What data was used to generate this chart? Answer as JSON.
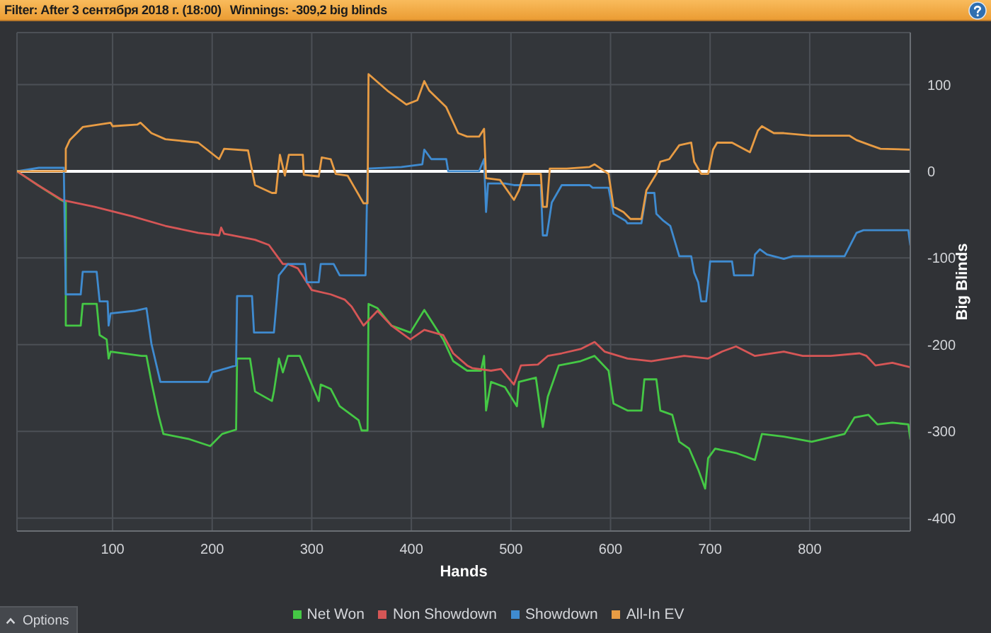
{
  "chart_data": {
    "type": "line",
    "title": "Filter: After 3 сентября 2018 г. (18:00)",
    "subtitle": "Winnings: -309,2 big blinds",
    "xlabel": "Hands",
    "ylabel": "Big Blinds",
    "xlim": [
      4,
      901
    ],
    "xticks": [
      100,
      200,
      300,
      400,
      500,
      600,
      700,
      800
    ],
    "ylim": [
      -415,
      160
    ],
    "yticks": [
      -400,
      -300,
      -200,
      -100,
      0,
      100
    ],
    "grid": true,
    "legend": "bottom",
    "marker": "none",
    "ref_lines": [
      {
        "axis": "y",
        "value": 0,
        "color": "#ffffff"
      }
    ],
    "annotations": [
      "Options"
    ],
    "series": [
      {
        "name": "Net Won",
        "color": "#45c845",
        "x": [
          4,
          25,
          48,
          53,
          53,
          68,
          70,
          84,
          87,
          94,
          96,
          98,
          129,
          134,
          139,
          146,
          151,
          177,
          198,
          210,
          224,
          225,
          238,
          243,
          260,
          262,
          267,
          271,
          276,
          288,
          300,
          307,
          309,
          319,
          328,
          347,
          350,
          356,
          357,
          366,
          380,
          399,
          413,
          432,
          442,
          456,
          470,
          473,
          475,
          480,
          494,
          506,
          508,
          525,
          532,
          537,
          548,
          570,
          584,
          598,
          603,
          617,
          631,
          634,
          646,
          650,
          662,
          669,
          679,
          688,
          695,
          698,
          705,
          726,
          745,
          752,
          774,
          802,
          835,
          845,
          859,
          868,
          883,
          899,
          901
        ],
        "values": [
          0,
          -16,
          -33,
          -36,
          -178,
          -178,
          -153,
          -153,
          -189,
          -194,
          -216,
          -208,
          -213,
          -213,
          -243,
          -281,
          -303,
          -309,
          -317,
          -303,
          -298,
          -216,
          -216,
          -254,
          -265,
          -254,
          -216,
          -232,
          -213,
          -213,
          -246,
          -265,
          -246,
          -251,
          -271,
          -287,
          -299,
          -299,
          -153,
          -158,
          -178,
          -186,
          -160,
          -194,
          -219,
          -230,
          -230,
          -213,
          -276,
          -243,
          -249,
          -271,
          -243,
          -238,
          -295,
          -260,
          -224,
          -219,
          -213,
          -230,
          -268,
          -276,
          -276,
          -240,
          -240,
          -276,
          -281,
          -312,
          -320,
          -344,
          -366,
          -331,
          -320,
          -325,
          -333,
          -303,
          -306,
          -312,
          -303,
          -284,
          -281,
          -292,
          -290,
          -292,
          -309
        ]
      },
      {
        "name": "Non Showdown",
        "color": "#d65656",
        "x": [
          4,
          25,
          49,
          82,
          120,
          153,
          186,
          207,
          209,
          212,
          243,
          257,
          271,
          276,
          286,
          300,
          319,
          333,
          340,
          352,
          366,
          380,
          399,
          413,
          432,
          442,
          456,
          461,
          480,
          490,
          503,
          510,
          527,
          537,
          551,
          570,
          584,
          594,
          617,
          641,
          674,
          698,
          712,
          726,
          745,
          774,
          793,
          821,
          850,
          857,
          866,
          883,
          901
        ],
        "values": [
          0,
          -16,
          -33,
          -41,
          -52,
          -63,
          -71,
          -74,
          -65,
          -72,
          -79,
          -85,
          -107,
          -107,
          -112,
          -137,
          -142,
          -148,
          -156,
          -178,
          -161,
          -178,
          -194,
          -183,
          -189,
          -210,
          -224,
          -227,
          -230,
          -228,
          -246,
          -224,
          -223,
          -213,
          -210,
          -205,
          -197,
          -208,
          -216,
          -219,
          -213,
          -216,
          -208,
          -202,
          -213,
          -208,
          -213,
          -213,
          -210,
          -213,
          -224,
          -221,
          -226
        ]
      },
      {
        "name": "Showdown",
        "color": "#3f8bd0",
        "x": [
          4,
          26,
          51,
          53,
          68,
          70,
          84,
          87,
          95,
          96,
          98,
          122,
          134,
          139,
          148,
          196,
          200,
          215,
          224,
          225,
          240,
          242,
          262,
          267,
          276,
          293,
          295,
          307,
          309,
          322,
          328,
          354,
          356,
          390,
          411,
          413,
          420,
          435,
          437,
          468,
          473,
          475,
          477,
          494,
          503,
          530,
          532,
          536,
          541,
          551,
          579,
          582,
          598,
          603,
          615,
          617,
          631,
          636,
          644,
          646,
          653,
          660,
          669,
          681,
          684,
          688,
          691,
          696,
          698,
          700,
          722,
          724,
          743,
          745,
          750,
          757,
          774,
          783,
          835,
          847,
          854,
          899,
          901
        ],
        "values": [
          0,
          4,
          4,
          -142,
          -142,
          -116,
          -116,
          -150,
          -150,
          -178,
          -164,
          -161,
          -158,
          -199,
          -243,
          -243,
          -232,
          -227,
          -224,
          -144,
          -144,
          -186,
          -186,
          -120,
          -107,
          -107,
          -128,
          -128,
          -107,
          -107,
          -120,
          -120,
          3,
          5,
          8,
          25,
          14,
          14,
          0,
          0,
          14,
          -47,
          -14,
          -14,
          -16,
          -16,
          -74,
          -74,
          -36,
          -16,
          -16,
          -19,
          -19,
          -49,
          -57,
          -60,
          -60,
          -25,
          -25,
          -49,
          -57,
          -63,
          -98,
          -98,
          -117,
          -128,
          -150,
          -150,
          -128,
          -104,
          -104,
          -120,
          -120,
          -96,
          -90,
          -96,
          -101,
          -98,
          -98,
          -71,
          -68,
          -68,
          -85
        ]
      },
      {
        "name": "All-In EV",
        "color": "#e89c44",
        "x": [
          4,
          53,
          53,
          57,
          70,
          98,
          100,
          125,
          128,
          139,
          153,
          186,
          207,
          212,
          236,
          243,
          260,
          264,
          268,
          273,
          277,
          291,
          292,
          307,
          310,
          319,
          324,
          336,
          343,
          352,
          356,
          357,
          376,
          395,
          406,
          413,
          418,
          435,
          447,
          456,
          468,
          473,
          475,
          489,
          503,
          508,
          513,
          530,
          532,
          536,
          539,
          556,
          579,
          584,
          598,
          603,
          613,
          620,
          631,
          636,
          646,
          650,
          659,
          669,
          681,
          684,
          691,
          698,
          703,
          707,
          722,
          740,
          748,
          752,
          764,
          774,
          802,
          840,
          847,
          861,
          871,
          901
        ],
        "values": [
          0,
          0,
          26,
          36,
          51,
          56,
          52,
          54,
          56,
          44,
          37,
          33,
          14,
          26,
          24,
          -16,
          -25,
          -25,
          19,
          -5,
          19,
          19,
          -4,
          -6,
          16,
          14,
          -3,
          -5,
          -19,
          -37,
          -37,
          112,
          93,
          77,
          82,
          104,
          93,
          74,
          44,
          40,
          40,
          49,
          -8,
          -10,
          -33,
          -22,
          -3,
          -3,
          -41,
          -41,
          3,
          3,
          5,
          8,
          -3,
          -41,
          -47,
          -55,
          -55,
          -22,
          -3,
          11,
          14,
          30,
          33,
          11,
          -3,
          -3,
          25,
          33,
          33,
          22,
          47,
          52,
          44,
          44,
          41,
          41,
          36,
          30,
          26,
          25
        ]
      }
    ]
  }
}
